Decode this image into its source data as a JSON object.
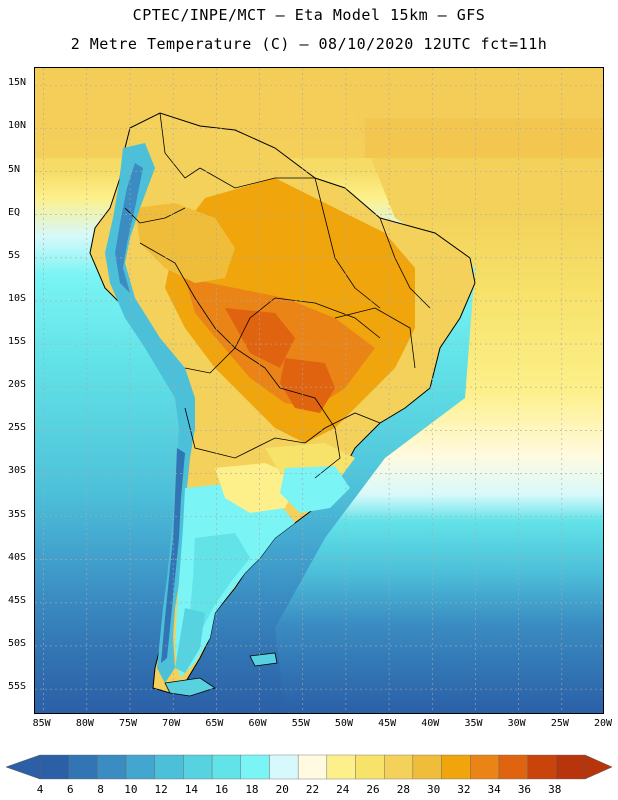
{
  "title": {
    "line1": "CPTEC/INPE/MCT –  Eta Model 15km – GFS",
    "line2": "2 Metre Temperature (C) – 08/10/2020 12UTC fct=11h"
  },
  "axes": {
    "lat_labels": [
      "15N",
      "10N",
      "5N",
      "EQ",
      "5S",
      "10S",
      "15S",
      "20S",
      "25S",
      "30S",
      "35S",
      "40S",
      "45S",
      "50S",
      "55S"
    ],
    "lat_values": [
      15,
      10,
      5,
      0,
      -5,
      -10,
      -15,
      -20,
      -25,
      -30,
      -35,
      -40,
      -45,
      -50,
      -55
    ],
    "lon_labels": [
      "85W",
      "80W",
      "75W",
      "70W",
      "65W",
      "60W",
      "55W",
      "50W",
      "45W",
      "40W",
      "35W",
      "30W",
      "25W",
      "20W"
    ],
    "lon_values": [
      -85,
      -80,
      -75,
      -70,
      -65,
      -60,
      -55,
      -50,
      -45,
      -40,
      -35,
      -30,
      -25,
      -20
    ],
    "lon_range": [
      -86,
      -20
    ],
    "lat_range": [
      -58,
      17
    ]
  },
  "colorbar": {
    "labels": [
      "4",
      "6",
      "8",
      "10",
      "12",
      "14",
      "16",
      "18",
      "20",
      "22",
      "24",
      "26",
      "28",
      "30",
      "32",
      "34",
      "36",
      "38"
    ],
    "colors": [
      "#2b5fa6",
      "#3275b4",
      "#3a8cc2",
      "#43a6cf",
      "#4cbfd9",
      "#57d2e0",
      "#62e3e8",
      "#7af4f4",
      "#d7f9fb",
      "#fffae0",
      "#fdf08a",
      "#f7e26a",
      "#f3d15a",
      "#f0bd3a",
      "#f0a50d",
      "#ea8417",
      "#e06310",
      "#c9440b",
      "#b8340a"
    ]
  }
}
